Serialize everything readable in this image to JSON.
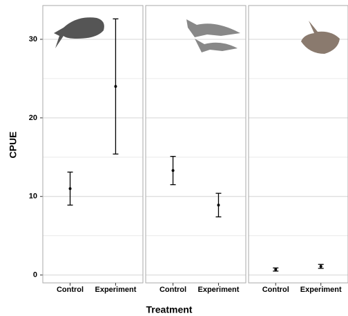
{
  "chart_data": {
    "type": "errorbar",
    "ylabel": "CPUE",
    "xlabel": "Treatment",
    "categories": [
      "Control",
      "Experiment"
    ],
    "ylim": [
      -1,
      34.3
    ],
    "yticks": [
      0,
      10,
      20,
      30
    ],
    "minor_grid": [
      5,
      15,
      25
    ],
    "grid": true,
    "color": "#000000",
    "panels": [
      {
        "values": [
          11,
          24
        ],
        "errors": [
          2.1,
          8.6
        ]
      },
      {
        "values": [
          13.3,
          8.9
        ],
        "errors": [
          1.8,
          1.5
        ]
      },
      {
        "values": [
          0.7,
          1.1
        ],
        "errors": [
          0.2,
          0.25
        ]
      }
    ]
  }
}
